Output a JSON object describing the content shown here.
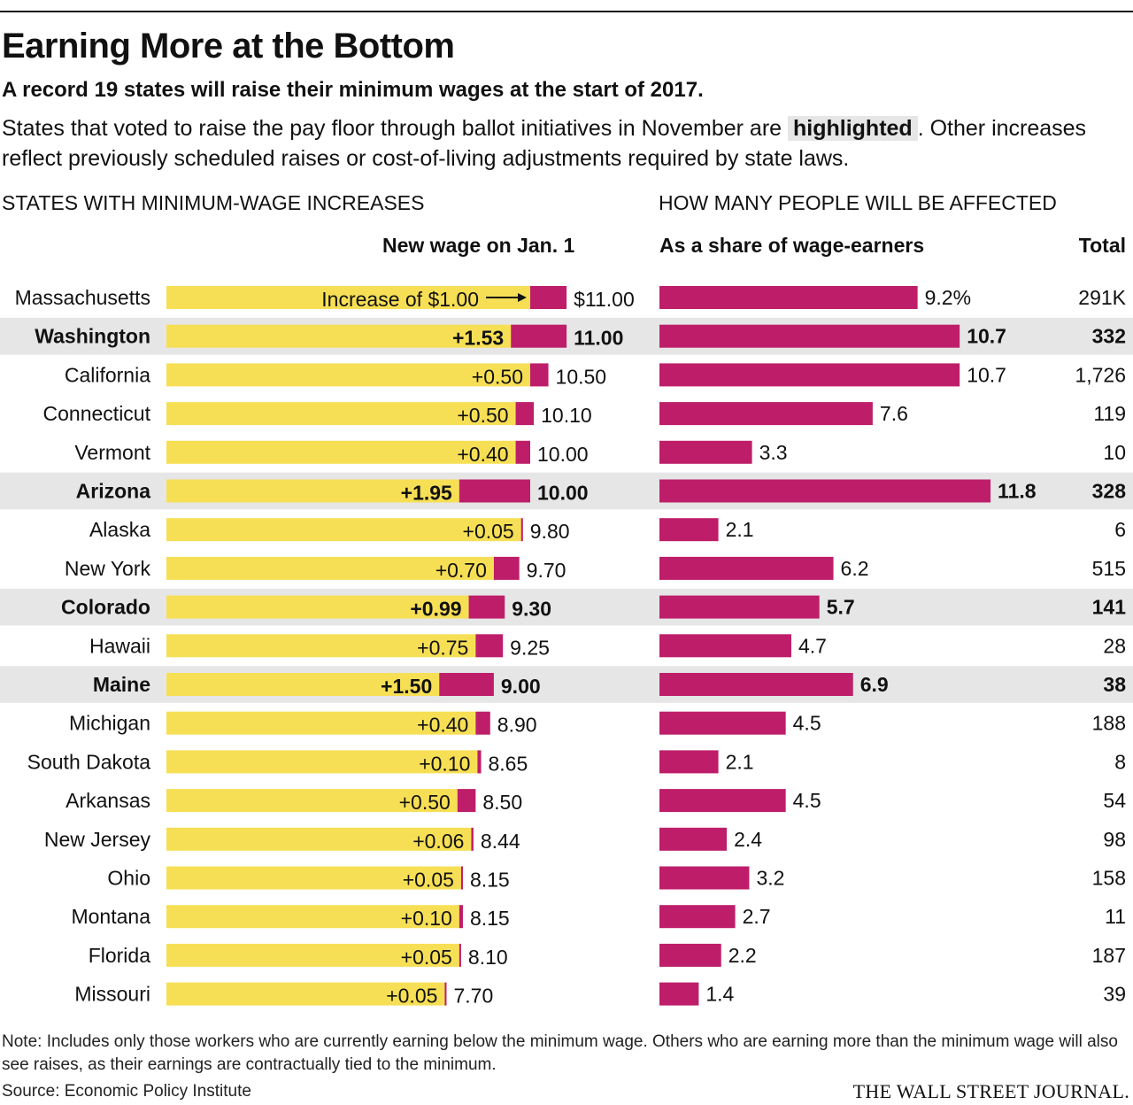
{
  "title": "Earning More at the Bottom",
  "subtitle": "A record 19 states will raise their minimum wages at the start of 2017.",
  "intro": {
    "before": "States that voted to raise the pay floor through ballot initiatives in November are ",
    "highlight": "highlighted",
    "after": ". Other increases reflect previously scheduled raises or cost-of-living adjustments required by state laws."
  },
  "left_section_title": "STATES WITH MINIMUM-WAGE INCREASES",
  "right_section_title": "HOW MANY PEOPLE WILL BE AFFECTED",
  "left_column_header": "New wage on Jan. 1",
  "share_column_header": "As a share of wage-earners",
  "total_column_header": "Total",
  "annotation": "Increase of $1.00",
  "note": "Note: Includes only those workers who are currently earning below the minimum wage. Others who are earning more than the minimum wage will also see raises, as their earnings are contractually tied to the minimum.",
  "source": "Source: Economic Policy Institute",
  "brand": "THE WALL STREET JOURNAL.",
  "colors": {
    "old_wage": "#f7df55",
    "increase": "#be1e69",
    "share_bar": "#be1e69",
    "highlight_row": "#e6e6e6"
  },
  "chart_data": [
    {
      "type": "bar",
      "stacked": true,
      "orientation": "horizontal",
      "xlim": [
        0,
        11.0
      ],
      "categories": [
        "Massachusetts",
        "Washington",
        "California",
        "Connecticut",
        "Vermont",
        "Arizona",
        "Alaska",
        "New York",
        "Colorado",
        "Hawaii",
        "Maine",
        "Michigan",
        "South Dakota",
        "Arkansas",
        "New Jersey",
        "Ohio",
        "Montana",
        "Florida",
        "Missouri"
      ],
      "highlighted": [
        false,
        true,
        false,
        false,
        false,
        true,
        false,
        false,
        true,
        false,
        true,
        false,
        false,
        false,
        false,
        false,
        false,
        false,
        false
      ],
      "series": [
        {
          "name": "Previous wage",
          "values": [
            10.0,
            9.47,
            10.0,
            9.6,
            9.6,
            8.05,
            9.75,
            9.0,
            8.31,
            8.5,
            7.5,
            8.5,
            8.55,
            8.0,
            8.38,
            8.1,
            8.05,
            8.05,
            7.65
          ]
        },
        {
          "name": "Increase",
          "values": [
            1.0,
            1.53,
            0.5,
            0.5,
            0.4,
            1.95,
            0.05,
            0.7,
            0.99,
            0.75,
            1.5,
            0.4,
            0.1,
            0.5,
            0.06,
            0.05,
            0.1,
            0.05,
            0.05
          ]
        }
      ],
      "increase_labels": [
        "",
        "+1.53",
        "+0.50",
        "+0.50",
        "+0.40",
        "+1.95",
        "+0.05",
        "+0.70",
        "+0.99",
        "+0.75",
        "+1.50",
        "+0.40",
        "+0.10",
        "+0.50",
        "+0.06",
        "+0.05",
        "+0.10",
        "+0.05",
        "+0.05"
      ],
      "new_wage_labels": [
        "$11.00",
        "11.00",
        "10.50",
        "10.10",
        "10.00",
        "10.00",
        "9.80",
        "9.70",
        "9.30",
        "9.25",
        "9.00",
        "8.90",
        "8.65",
        "8.50",
        "8.44",
        "8.15",
        "8.15",
        "8.10",
        "7.70"
      ],
      "new_wage": [
        11.0,
        11.0,
        10.5,
        10.1,
        10.0,
        10.0,
        9.8,
        9.7,
        9.3,
        9.25,
        9.0,
        8.9,
        8.65,
        8.5,
        8.44,
        8.15,
        8.15,
        8.1,
        7.7
      ]
    },
    {
      "type": "bar",
      "orientation": "horizontal",
      "xlim": [
        0,
        11.8
      ],
      "categories": [
        "Massachusetts",
        "Washington",
        "California",
        "Connecticut",
        "Vermont",
        "Arizona",
        "Alaska",
        "New York",
        "Colorado",
        "Hawaii",
        "Maine",
        "Michigan",
        "South Dakota",
        "Arkansas",
        "New Jersey",
        "Ohio",
        "Montana",
        "Florida",
        "Missouri"
      ],
      "values": [
        9.2,
        10.7,
        10.7,
        7.6,
        3.3,
        11.8,
        2.1,
        6.2,
        5.7,
        4.7,
        6.9,
        4.5,
        2.1,
        4.5,
        2.4,
        3.2,
        2.7,
        2.2,
        1.4
      ],
      "value_labels": [
        "9.2%",
        "10.7",
        "10.7",
        "7.6",
        "3.3",
        "11.8",
        "2.1",
        "6.2",
        "5.7",
        "4.7",
        "6.9",
        "4.5",
        "2.1",
        "4.5",
        "2.4",
        "3.2",
        "2.7",
        "2.2",
        "1.4"
      ],
      "totals": [
        "291K",
        "332",
        "1,726",
        "119",
        "10",
        "328",
        "6",
        "515",
        "141",
        "28",
        "38",
        "188",
        "8",
        "54",
        "98",
        "158",
        "11",
        "187",
        "39"
      ]
    }
  ]
}
